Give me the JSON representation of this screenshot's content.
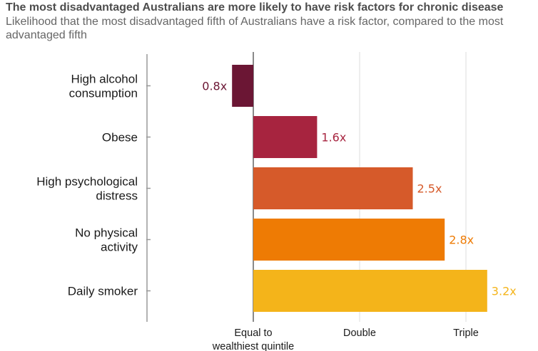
{
  "header": {
    "title": "The most disadvantaged Australians are more likely to have risk factors for chronic disease",
    "subtitle": "Likelihood that the most disadvantaged fifth of Australians have a risk factor, compared to the most advantaged fifth"
  },
  "chart_data": {
    "type": "bar",
    "orientation": "horizontal",
    "baseline": 1,
    "xlim": [
      0,
      3.2
    ],
    "categories": [
      [
        "High alcohol",
        "consumption"
      ],
      [
        "Obese"
      ],
      [
        "High psychological",
        "distress"
      ],
      [
        "No physical",
        "activity"
      ],
      [
        "Daily smoker"
      ]
    ],
    "values": [
      0.8,
      1.6,
      2.5,
      2.8,
      3.2
    ],
    "value_labels": [
      "0.8x",
      "1.6x",
      "2.5x",
      "2.8x",
      "3.2x"
    ],
    "colors": [
      "#6b1634",
      "#a7243f",
      "#d65a2a",
      "#ee7b04",
      "#f4b41a"
    ],
    "label_colors": [
      "#6b1634",
      "#a7243f",
      "#d65a2a",
      "#ee7b04",
      "#f4b41a"
    ],
    "ticks": [
      {
        "value": 1,
        "label": [
          "Equal to",
          "wealthiest quintile"
        ]
      },
      {
        "value": 2,
        "label": [
          "Double"
        ]
      },
      {
        "value": 3,
        "label": [
          "Triple"
        ]
      }
    ],
    "grid": true
  }
}
